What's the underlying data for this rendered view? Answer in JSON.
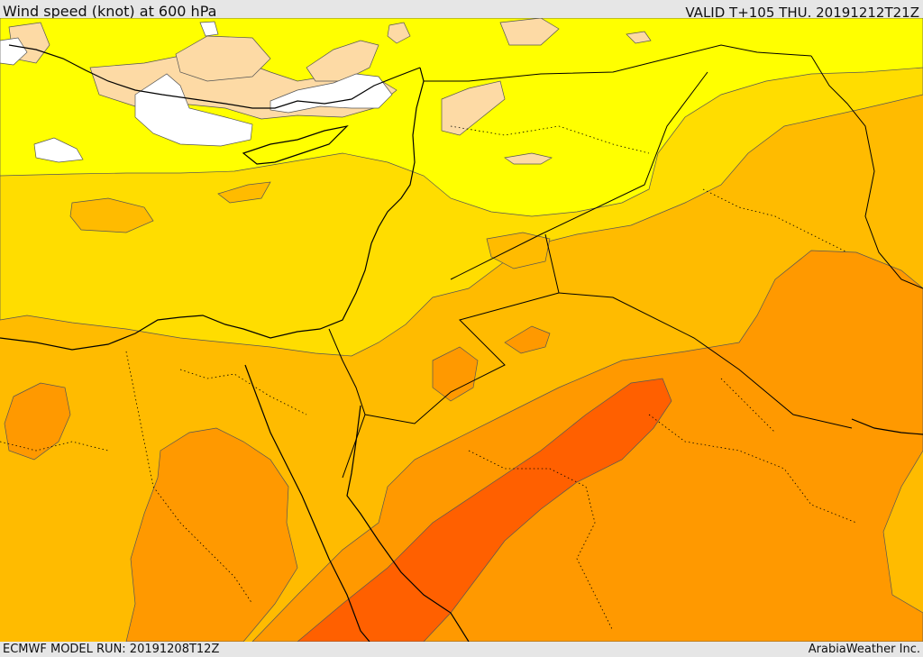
{
  "header": {
    "title": "Wind speed (knot) at 600 hPa",
    "valid": "VALID T+105 THU. 20191212T21Z"
  },
  "footer": {
    "model_run": "ECMWF MODEL RUN: 20191208T12Z",
    "credit": "ArabiaWeather Inc."
  },
  "palette": {
    "lt_5": "#ffffff",
    "b5_10": "#fddaa5",
    "b10_15": "#ffff00",
    "b15_20": "#ffdd00",
    "b20_25": "#ffbb00",
    "b25_30": "#ff9900",
    "b30_35": "#ff6000",
    "coast": "#000000",
    "contour": "#444444"
  }
}
